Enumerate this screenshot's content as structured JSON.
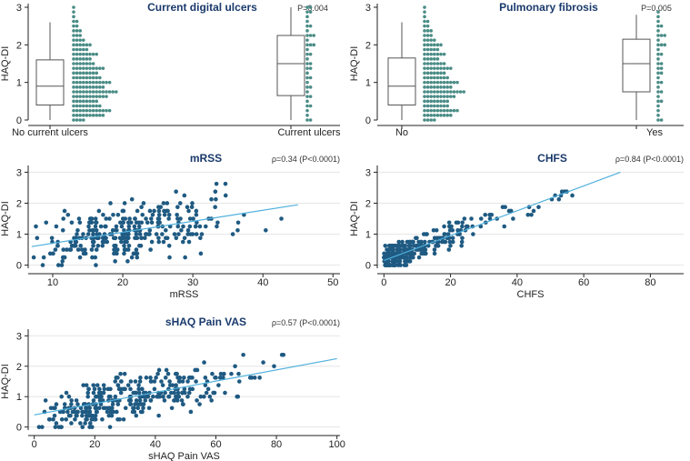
{
  "figure": {
    "colors": {
      "dot": "#1f5a82",
      "dot_light": "#4a8c86",
      "fit_line": "#4fb0dc",
      "axis": "#222222",
      "title": "#1a3a6b",
      "box_edge": "#555555"
    }
  },
  "chart_data": [
    {
      "id": "p1",
      "type": "box+dot",
      "title": "Current digital ulcers",
      "stat": "P=0.004",
      "ylabel": "HAQ-DI",
      "yticks": [
        0,
        1,
        2,
        3
      ],
      "ylim": [
        0,
        3
      ],
      "groups": [
        {
          "label": "No current ulcers",
          "box": {
            "whisker_low": 0.0,
            "q1": 0.4,
            "median": 0.9,
            "q3": 1.6,
            "whisker_high": 2.6
          },
          "dot_counts": [
            [
              0,
              4
            ],
            [
              0.125,
              10
            ],
            [
              0.25,
              12
            ],
            [
              0.375,
              9
            ],
            [
              0.5,
              8
            ],
            [
              0.625,
              11
            ],
            [
              0.75,
              14
            ],
            [
              0.875,
              10
            ],
            [
              1.0,
              12
            ],
            [
              1.125,
              9
            ],
            [
              1.25,
              8
            ],
            [
              1.375,
              10
            ],
            [
              1.5,
              7
            ],
            [
              1.625,
              6
            ],
            [
              1.75,
              8
            ],
            [
              1.875,
              5
            ],
            [
              2.0,
              6
            ],
            [
              2.125,
              4
            ],
            [
              2.25,
              3
            ],
            [
              2.375,
              3
            ],
            [
              2.5,
              2
            ],
            [
              2.625,
              2
            ],
            [
              2.75,
              1
            ],
            [
              2.875,
              1
            ],
            [
              3.0,
              1
            ]
          ]
        },
        {
          "label": "Current ulcers",
          "box": {
            "whisker_low": 0.0,
            "q1": 0.65,
            "median": 1.5,
            "q3": 2.25,
            "whisker_high": 3.0
          },
          "dot_counts": [
            [
              0,
              2
            ],
            [
              0.125,
              1
            ],
            [
              0.25,
              1
            ],
            [
              0.375,
              2
            ],
            [
              0.5,
              1
            ],
            [
              0.625,
              2
            ],
            [
              0.75,
              1
            ],
            [
              0.875,
              2
            ],
            [
              1.0,
              1
            ],
            [
              1.125,
              2
            ],
            [
              1.25,
              1
            ],
            [
              1.375,
              2
            ],
            [
              1.5,
              2
            ],
            [
              1.625,
              1
            ],
            [
              1.75,
              2
            ],
            [
              1.875,
              1
            ],
            [
              2.0,
              3
            ],
            [
              2.125,
              1
            ],
            [
              2.25,
              3
            ],
            [
              2.375,
              1
            ],
            [
              2.5,
              2
            ],
            [
              2.625,
              1
            ],
            [
              2.75,
              1
            ],
            [
              2.875,
              2
            ],
            [
              3.0,
              2
            ]
          ]
        }
      ]
    },
    {
      "id": "p2",
      "type": "box+dot",
      "title": "Pulmonary fibrosis",
      "stat": "P=0.005",
      "ylabel": "HAQ-DI",
      "yticks": [
        0,
        1,
        2,
        3
      ],
      "ylim": [
        0,
        3
      ],
      "groups": [
        {
          "label": "No",
          "box": {
            "whisker_low": 0.0,
            "q1": 0.4,
            "median": 0.9,
            "q3": 1.65,
            "whisker_high": 2.6
          },
          "dot_counts": [
            [
              0,
              4
            ],
            [
              0.125,
              9
            ],
            [
              0.25,
              11
            ],
            [
              0.375,
              8
            ],
            [
              0.5,
              8
            ],
            [
              0.625,
              10
            ],
            [
              0.75,
              13
            ],
            [
              0.875,
              9
            ],
            [
              1.0,
              11
            ],
            [
              1.125,
              8
            ],
            [
              1.25,
              7
            ],
            [
              1.375,
              9
            ],
            [
              1.5,
              7
            ],
            [
              1.625,
              5
            ],
            [
              1.75,
              7
            ],
            [
              1.875,
              5
            ],
            [
              2.0,
              6
            ],
            [
              2.125,
              4
            ],
            [
              2.25,
              3
            ],
            [
              2.375,
              3
            ],
            [
              2.5,
              2
            ],
            [
              2.625,
              2
            ],
            [
              2.75,
              1
            ],
            [
              2.875,
              1
            ],
            [
              3.0,
              1
            ]
          ]
        },
        {
          "label": "Yes",
          "box": {
            "whisker_low": 0.0,
            "q1": 0.75,
            "median": 1.5,
            "q3": 2.15,
            "whisker_high": 2.8
          },
          "dot_counts": [
            [
              0,
              2
            ],
            [
              0.125,
              1
            ],
            [
              0.25,
              1
            ],
            [
              0.375,
              1
            ],
            [
              0.5,
              2
            ],
            [
              0.625,
              1
            ],
            [
              0.75,
              2
            ],
            [
              0.875,
              1
            ],
            [
              1.0,
              2
            ],
            [
              1.125,
              1
            ],
            [
              1.25,
              2
            ],
            [
              1.375,
              2
            ],
            [
              1.5,
              2
            ],
            [
              1.625,
              1
            ],
            [
              1.75,
              2
            ],
            [
              1.875,
              1
            ],
            [
              2.0,
              3
            ],
            [
              2.125,
              1
            ],
            [
              2.25,
              3
            ],
            [
              2.375,
              1
            ],
            [
              2.5,
              2
            ],
            [
              2.625,
              1
            ],
            [
              2.75,
              1
            ],
            [
              2.875,
              1
            ]
          ]
        }
      ]
    },
    {
      "id": "p3",
      "type": "scatter",
      "title": "mRSS",
      "stat_rho": "ρ=0.34",
      "stat_p": "(P<0.0001)",
      "xlabel": "mRSS",
      "ylabel": "HAQ-DI",
      "xticks": [
        10,
        20,
        30,
        40,
        50
      ],
      "yticks": [
        0,
        1,
        2,
        3
      ],
      "xlim": [
        6.5,
        51
      ],
      "ylim": [
        -0.1,
        3.1
      ],
      "fit": {
        "x": [
          7,
          45
        ],
        "y": [
          0.6,
          1.95
        ]
      },
      "points": {
        "n": 300,
        "seed": 11,
        "x_range": [
          7,
          45
        ],
        "x_peak": 20,
        "y_min": 0,
        "y_max": 3,
        "intercept": 0.35,
        "slope": 0.035,
        "spread": 0.7
      }
    },
    {
      "id": "p4",
      "type": "scatter",
      "title": "CHFS",
      "stat_rho": "ρ=0.84",
      "stat_p": "(P<0.0001)",
      "xlabel": "CHFS",
      "ylabel": "HAQ-DI",
      "xticks": [
        0,
        20,
        40,
        60,
        80
      ],
      "yticks": [
        0,
        1,
        2,
        3
      ],
      "xlim": [
        -2,
        90
      ],
      "ylim": [
        -0.1,
        3.1
      ],
      "fit": {
        "x": [
          0,
          71
        ],
        "y": [
          0.15,
          3.0
        ]
      },
      "points": {
        "n": 300,
        "seed": 23,
        "x_range": [
          0,
          88
        ],
        "x_peak": 8,
        "y_min": 0,
        "y_max": 3,
        "intercept": 0.15,
        "slope": 0.04,
        "spread": 0.3
      }
    },
    {
      "id": "p5",
      "type": "scatter",
      "title": "sHAQ Pain VAS",
      "stat_rho": "ρ=0.57",
      "stat_p": "(P<0.0001)",
      "xlabel": "sHAQ Pain VAS",
      "ylabel": "HAQ-DI",
      "xticks": [
        0,
        20,
        40,
        60,
        80,
        100
      ],
      "yticks": [
        0,
        1,
        2,
        3
      ],
      "xlim": [
        -2,
        101
      ],
      "ylim": [
        -0.1,
        3.1
      ],
      "fit": {
        "x": [
          0,
          100
        ],
        "y": [
          0.4,
          2.25
        ]
      },
      "points": {
        "n": 320,
        "seed": 37,
        "x_range": [
          0,
          99
        ],
        "x_peak": 30,
        "y_min": 0,
        "y_max": 3,
        "intercept": 0.4,
        "slope": 0.0185,
        "spread": 0.55
      }
    }
  ]
}
